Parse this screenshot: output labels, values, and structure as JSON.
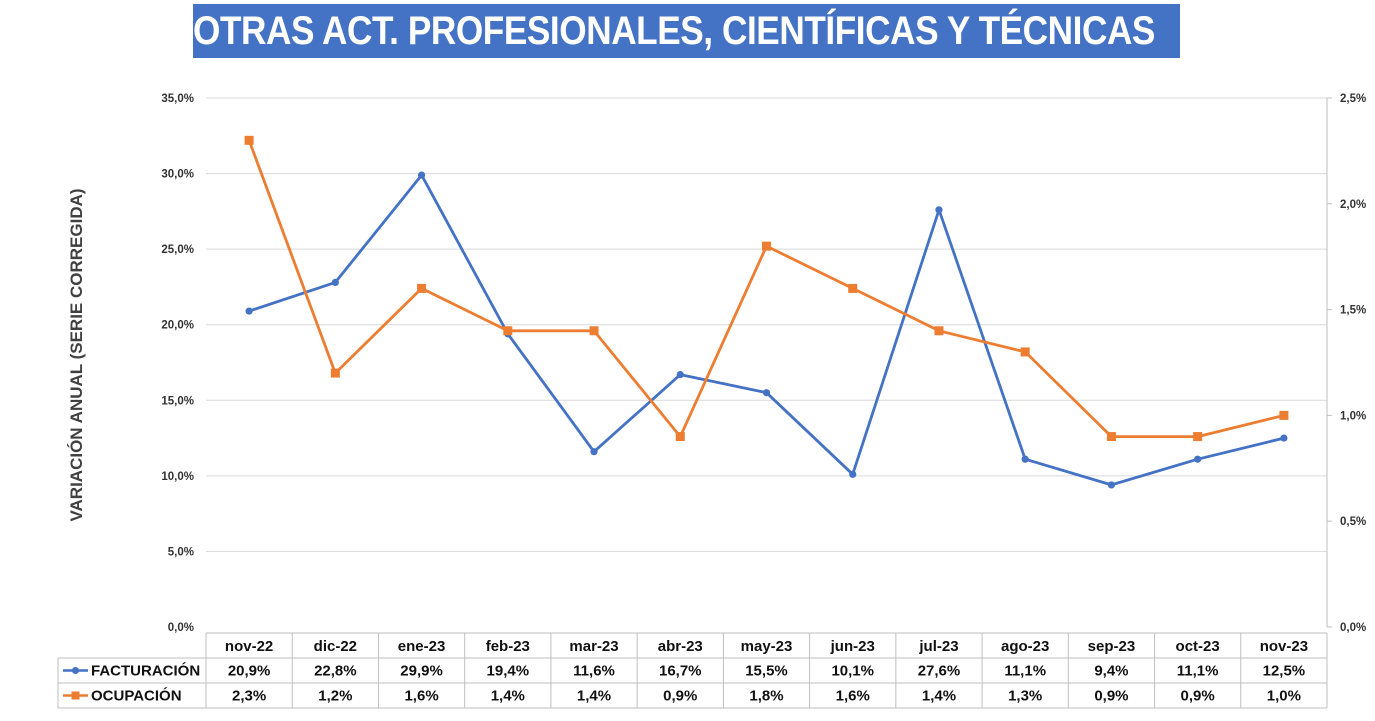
{
  "title": "OTRAS ACT. PROFESIONALES, CIENTÍFICAS Y TÉCNICAS",
  "colors": {
    "title_bg": "#4472c4",
    "title_fg": "#ffffff",
    "facturacion": "#4472c4",
    "ocupacion": "#ed7d31",
    "grid": "#d9d9d9"
  },
  "chart_data": {
    "type": "line",
    "title": "OTRAS ACT. PROFESIONALES, CIENTÍFICAS Y TÉCNICAS",
    "ylabel": "VARIACIÓN ANUAL (SERIE CORREGIDA)",
    "xlabel": "",
    "categories": [
      "nov-22",
      "dic-22",
      "ene-23",
      "feb-23",
      "mar-23",
      "abr-23",
      "may-23",
      "jun-23",
      "jul-23",
      "ago-23",
      "sep-23",
      "oct-23",
      "nov-23"
    ],
    "y_left": {
      "min": 0,
      "max": 35,
      "step": 5,
      "tick_labels": [
        "0,0%",
        "5,0%",
        "10,0%",
        "15,0%",
        "20,0%",
        "25,0%",
        "30,0%",
        "35,0%"
      ]
    },
    "y_right": {
      "min": 0,
      "max": 2.5,
      "step": 0.5,
      "tick_labels": [
        "0,0%",
        "0,5%",
        "1,0%",
        "1,5%",
        "2,0%",
        "2,5%"
      ]
    },
    "grid": true,
    "legend_position": "bottom-table",
    "series": [
      {
        "name": "FACTURACIÓN",
        "axis": "left",
        "marker": "circle",
        "values": [
          20.9,
          22.8,
          29.9,
          19.4,
          11.6,
          16.7,
          15.5,
          10.1,
          27.6,
          11.1,
          9.4,
          11.1,
          12.5
        ],
        "labels": [
          "20,9%",
          "22,8%",
          "29,9%",
          "19,4%",
          "11,6%",
          "16,7%",
          "15,5%",
          "10,1%",
          "27,6%",
          "11,1%",
          "9,4%",
          "11,1%",
          "12,5%"
        ]
      },
      {
        "name": "OCUPACIÓN",
        "axis": "right",
        "marker": "square",
        "values": [
          2.3,
          1.2,
          1.6,
          1.4,
          1.4,
          0.9,
          1.8,
          1.6,
          1.4,
          1.3,
          0.9,
          0.9,
          1.0
        ],
        "labels": [
          "2,3%",
          "1,2%",
          "1,6%",
          "1,4%",
          "1,4%",
          "0,9%",
          "1,8%",
          "1,6%",
          "1,4%",
          "1,3%",
          "0,9%",
          "0,9%",
          "1,0%"
        ]
      }
    ]
  }
}
